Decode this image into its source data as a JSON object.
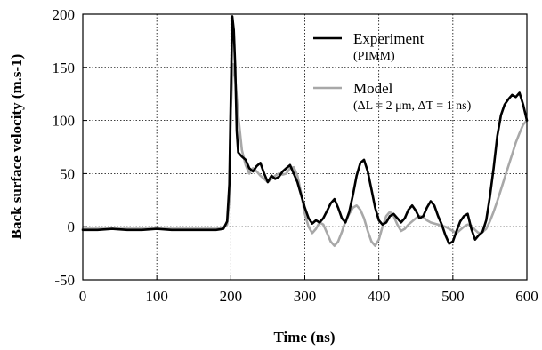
{
  "chart_data": {
    "type": "line",
    "xlabel": "Time (ns)",
    "ylabel": "Back surface velocity (m.s-1)",
    "xlim": [
      0,
      600
    ],
    "ylim": [
      -50,
      200
    ],
    "x_ticks": [
      "0",
      "100",
      "200",
      "300",
      "400",
      "500",
      "600"
    ],
    "y_ticks": [
      "200",
      "150",
      "100",
      "50",
      "0",
      "-50"
    ],
    "grid": true,
    "legend_position": "top-right",
    "series": [
      {
        "name": "Experiment",
        "subname": "(PIMM)",
        "color": "#000000",
        "x": [
          0,
          20,
          40,
          60,
          80,
          100,
          120,
          140,
          160,
          180,
          190,
          195,
          198,
          200,
          202,
          204,
          206,
          208,
          210,
          215,
          220,
          225,
          230,
          235,
          240,
          245,
          250,
          255,
          260,
          265,
          270,
          275,
          280,
          285,
          290,
          295,
          300,
          305,
          310,
          315,
          320,
          325,
          330,
          335,
          340,
          345,
          350,
          355,
          360,
          365,
          370,
          375,
          380,
          385,
          390,
          395,
          400,
          405,
          410,
          415,
          420,
          425,
          430,
          435,
          440,
          445,
          450,
          455,
          460,
          465,
          470,
          475,
          480,
          485,
          490,
          495,
          500,
          505,
          510,
          515,
          520,
          525,
          530,
          535,
          540,
          545,
          550,
          555,
          560,
          565,
          570,
          575,
          580,
          585,
          590,
          595,
          600
        ],
        "y": [
          -3,
          -3,
          -2,
          -3,
          -3,
          -2,
          -3,
          -3,
          -3,
          -3,
          -2,
          5,
          40,
          120,
          198,
          185,
          150,
          90,
          70,
          66,
          63,
          55,
          52,
          57,
          60,
          50,
          42,
          48,
          45,
          47,
          52,
          55,
          58,
          50,
          42,
          30,
          18,
          8,
          3,
          6,
          4,
          8,
          15,
          22,
          26,
          18,
          8,
          4,
          14,
          30,
          48,
          60,
          63,
          52,
          35,
          18,
          6,
          2,
          4,
          10,
          12,
          8,
          4,
          8,
          16,
          20,
          15,
          8,
          10,
          18,
          24,
          20,
          10,
          2,
          -8,
          -16,
          -14,
          -4,
          5,
          10,
          12,
          -2,
          -12,
          -8,
          -5,
          6,
          28,
          55,
          85,
          105,
          115,
          120,
          124,
          122,
          126,
          115,
          100
        ]
      },
      {
        "name": "Model",
        "subname": "(ΔL = 2 μm, ΔT = 1 ns)",
        "color": "#a8a8a8",
        "x": [
          0,
          20,
          40,
          60,
          80,
          100,
          120,
          140,
          160,
          180,
          190,
          195,
          198,
          200,
          203,
          206,
          210,
          215,
          220,
          225,
          230,
          235,
          240,
          245,
          250,
          255,
          260,
          265,
          270,
          275,
          280,
          285,
          290,
          295,
          300,
          305,
          310,
          315,
          320,
          325,
          330,
          335,
          340,
          345,
          350,
          355,
          360,
          365,
          370,
          375,
          380,
          385,
          390,
          395,
          400,
          405,
          410,
          415,
          420,
          425,
          430,
          435,
          440,
          445,
          450,
          455,
          460,
          465,
          470,
          475,
          480,
          485,
          490,
          495,
          500,
          505,
          510,
          515,
          520,
          525,
          530,
          535,
          540,
          545,
          550,
          555,
          560,
          565,
          570,
          575,
          580,
          585,
          590,
          595,
          600
        ],
        "y": [
          -2,
          -2,
          -2,
          -2,
          -2,
          -2,
          -2,
          -2,
          -2,
          -2,
          -1,
          2,
          25,
          110,
          153,
          140,
          105,
          72,
          58,
          50,
          55,
          52,
          48,
          45,
          42,
          45,
          48,
          50,
          49,
          50,
          55,
          56,
          48,
          32,
          12,
          0,
          -6,
          -2,
          4,
          2,
          -6,
          -14,
          -18,
          -14,
          -5,
          5,
          12,
          18,
          20,
          16,
          8,
          -4,
          -14,
          -18,
          -12,
          0,
          10,
          14,
          10,
          2,
          -4,
          -2,
          2,
          5,
          8,
          10,
          9,
          6,
          4,
          3,
          2,
          1,
          0,
          -2,
          -4,
          -6,
          -3,
          0,
          2,
          1,
          -3,
          -6,
          -5,
          -2,
          5,
          14,
          24,
          35,
          46,
          57,
          68,
          79,
          88,
          96,
          100
        ]
      }
    ]
  }
}
